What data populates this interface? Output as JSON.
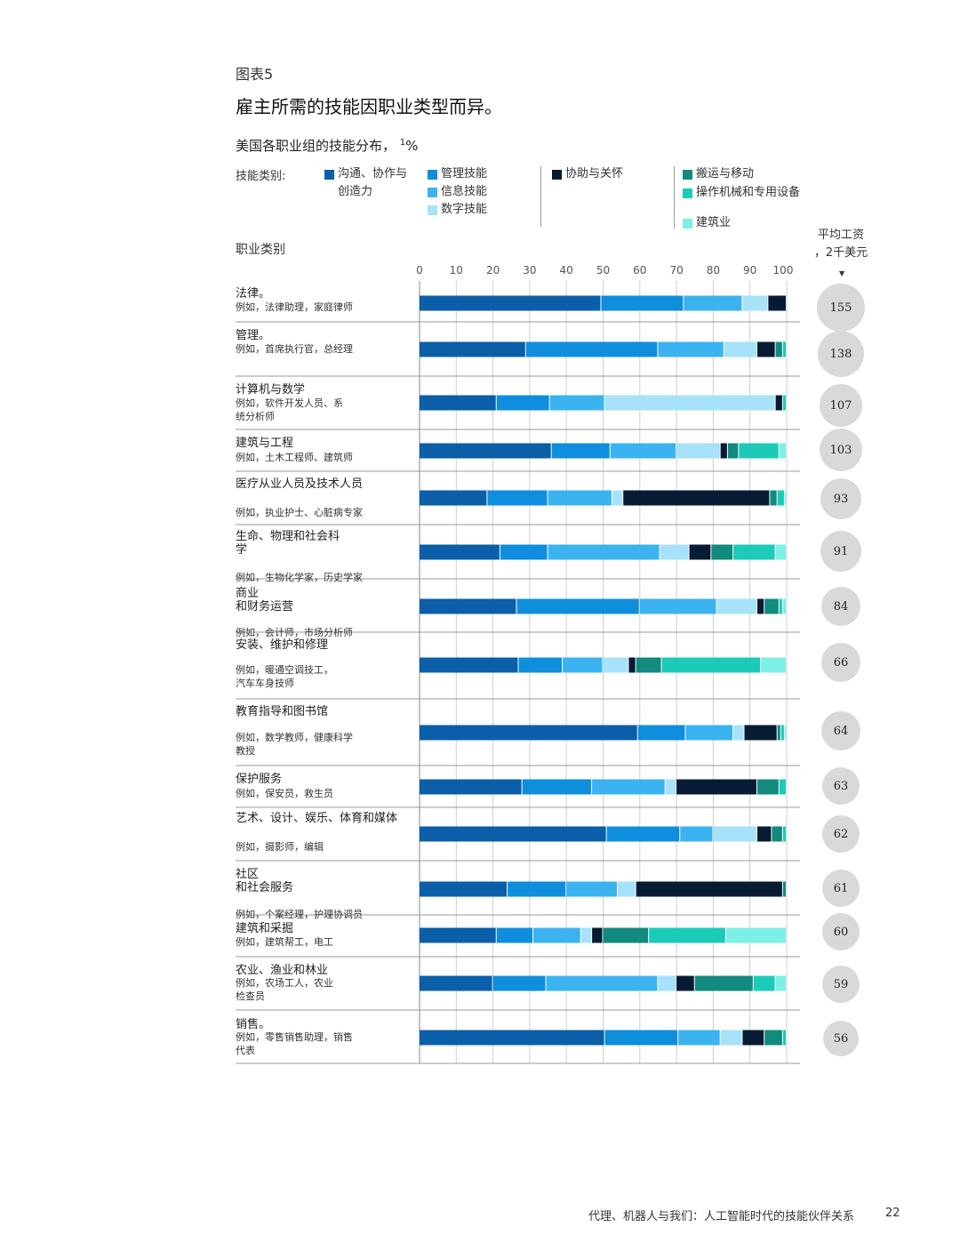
{
  "exhibit_label": "图表5",
  "title": "雇主所需的技能因职业类型而异。",
  "subtitle": "美国各职业组的技能分布，",
  "subtitle_sup": "1",
  "subtitle_unit": "%",
  "legend": {
    "label": "技能类别:",
    "items": [
      {
        "name": "沟通、协作与\n创造力",
        "color": "#0a5fa8"
      },
      {
        "name": "管理技能",
        "color": "#0f8ede"
      },
      {
        "name": "信息技能",
        "color": "#3bb3f0"
      },
      {
        "name": "数字技能",
        "color": "#a6e2fa"
      },
      {
        "name": "协助与关怀",
        "color": "#071c34"
      },
      {
        "name": "搬运与移动",
        "color": "#128a7e"
      },
      {
        "name": "操作机械和专用设备",
        "color": "#1bcbb7"
      },
      {
        "name": "建筑业",
        "color": "#7df0e6"
      }
    ]
  },
  "occupation_header": "职业类别",
  "wage_header": "平均工资\n，2千美元",
  "wage_arrow": "▼",
  "footer": "代理、机器人与我们：人工智能时代的技能伙伴关系",
  "page_number": "22",
  "chart_data": {
    "type": "bar",
    "orientation": "horizontal",
    "stacked": true,
    "xlim": [
      0,
      100
    ],
    "xticks": [
      0,
      10,
      20,
      30,
      40,
      50,
      60,
      70,
      80,
      90,
      100
    ],
    "series_names": [
      "沟通、协作与\n创造力",
      "管理技能",
      "信息技能",
      "数字技能",
      "协助与关怀",
      "搬运与移动",
      "操作机械和专用设备",
      "建筑业"
    ],
    "categories": [
      {
        "name": "法律。",
        "example": "例如，法律助理，家庭律师",
        "values": [
          49.5,
          22.5,
          16,
          7,
          5,
          0,
          0,
          0
        ],
        "wage": 155
      },
      {
        "name": "管理。",
        "example": "例如，首席执行官，总经理",
        "values": [
          29,
          36,
          18,
          9,
          5,
          2,
          1,
          0
        ],
        "wage": 138
      },
      {
        "name": "计算机与数学",
        "example": "例如，软件开发人员、系\n统分析师",
        "values": [
          21,
          14.5,
          15,
          46.5,
          2,
          0,
          1,
          0
        ],
        "wage": 107
      },
      {
        "name": "建筑与工程",
        "example": "例如，土木工程师、建筑师",
        "values": [
          36,
          16,
          18,
          12,
          2,
          3,
          11,
          2
        ],
        "wage": 103
      },
      {
        "name": "医疗从业人员及技术人员",
        "example": "例如，执业护士、心脏病专家",
        "values": [
          18.5,
          16.5,
          17.5,
          3,
          40,
          2,
          2,
          0.5
        ],
        "wage": 93
      },
      {
        "name": "生命、物理和社会科\n学",
        "example": "例如，生物化学家，历史学家",
        "values": [
          22,
          13,
          30.5,
          8,
          6,
          6,
          11.5,
          3
        ],
        "wage": 91
      },
      {
        "name": "商业\n和财务运营",
        "example": "例如，会计师，市场分析师",
        "values": [
          26.5,
          33.5,
          21,
          11,
          2,
          4,
          1,
          1
        ],
        "wage": 84
      },
      {
        "name": "安装、维护和修理",
        "example": "例如，暖通空调技工，\n汽车车身技师",
        "values": [
          27,
          12,
          11,
          7,
          2,
          7,
          27,
          7
        ],
        "wage": 66
      },
      {
        "name": "教育指导和图书馆",
        "example": "例如，数学教师，健康科学\n教授",
        "values": [
          59.5,
          13,
          13,
          3,
          9,
          1,
          1,
          0.5
        ],
        "wage": 64
      },
      {
        "name": "保护服务",
        "example": "例如，保安员，救生员",
        "values": [
          28,
          19,
          20,
          3,
          22,
          6,
          2,
          0
        ],
        "wage": 63
      },
      {
        "name": "艺术、设计、娱乐、体育和媒体",
        "example": "例如，摄影师，编辑",
        "values": [
          51,
          20,
          9,
          12,
          4,
          3,
          1,
          0
        ],
        "wage": 62
      },
      {
        "name": "社区\n和社会服务",
        "example": "例如，个案经理，护理协调员",
        "values": [
          24,
          16,
          14,
          5,
          40,
          1,
          0,
          0
        ],
        "wage": 61
      },
      {
        "name": "建筑和采掘",
        "example": "例如，建筑帮工，电工",
        "values": [
          21,
          10,
          13,
          3,
          3,
          12.5,
          21,
          16.5
        ],
        "wage": 60
      },
      {
        "name": "农业、渔业和林业",
        "example": "例如，农场工人，农业\n检查员",
        "values": [
          20,
          14.5,
          30.5,
          5,
          5,
          16,
          6,
          3
        ],
        "wage": 59
      },
      {
        "name": "销售。",
        "example": "例如，零售销售助理，销售\n代表",
        "values": [
          50.5,
          20,
          11.5,
          6,
          6,
          5,
          1,
          0
        ],
        "wage": 56
      }
    ]
  }
}
